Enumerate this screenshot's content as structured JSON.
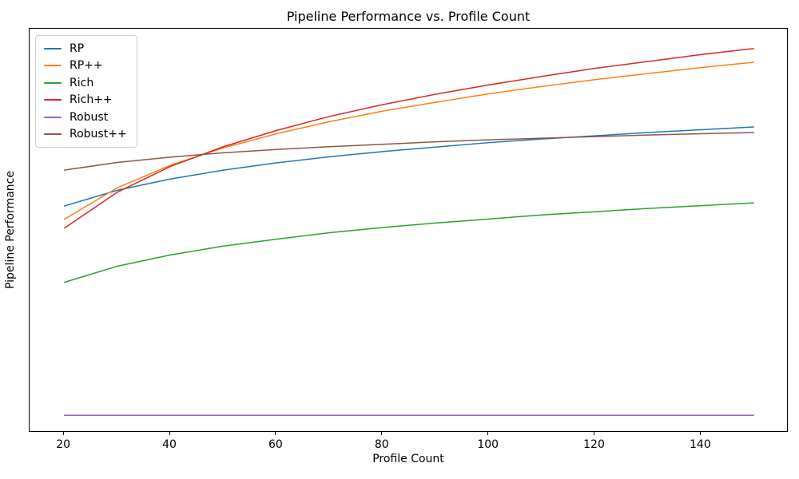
{
  "chart_data": {
    "type": "line",
    "title": "Pipeline Performance vs. Profile Count",
    "xlabel": "Profile Count",
    "ylabel": "Pipeline Performance",
    "grid": false,
    "legend_position": "upper left",
    "xlim": [
      13.5,
      156.5
    ],
    "ylim": [
      0,
      1
    ],
    "xticks": [
      20,
      40,
      60,
      80,
      100,
      120,
      140
    ],
    "yticks": [],
    "x": [
      20,
      30,
      40,
      50,
      60,
      70,
      80,
      90,
      100,
      110,
      120,
      130,
      140,
      150
    ],
    "series": [
      {
        "name": "RP",
        "color": "#1f77b4",
        "values": [
          0.561,
          0.6,
          0.628,
          0.65,
          0.668,
          0.683,
          0.696,
          0.707,
          0.718,
          0.727,
          0.735,
          0.743,
          0.75,
          0.757
        ]
      },
      {
        "name": "RP++",
        "color": "#ff7f0e",
        "values": [
          0.528,
          0.606,
          0.662,
          0.705,
          0.74,
          0.77,
          0.796,
          0.818,
          0.839,
          0.857,
          0.874,
          0.889,
          0.904,
          0.917
        ]
      },
      {
        "name": "Rich",
        "color": "#2ca02c",
        "values": [
          0.372,
          0.412,
          0.44,
          0.462,
          0.479,
          0.495,
          0.508,
          0.519,
          0.529,
          0.539,
          0.547,
          0.555,
          0.562,
          0.569
        ]
      },
      {
        "name": "Rich++",
        "color": "#d62728",
        "values": [
          0.506,
          0.595,
          0.659,
          0.708,
          0.748,
          0.783,
          0.812,
          0.838,
          0.861,
          0.882,
          0.902,
          0.919,
          0.936,
          0.951
        ]
      },
      {
        "name": "Robust",
        "color": "#9467bd",
        "values": [
          0.043,
          0.043,
          0.043,
          0.043,
          0.043,
          0.043,
          0.043,
          0.043,
          0.043,
          0.043,
          0.043,
          0.043,
          0.043,
          0.043
        ]
      },
      {
        "name": "Robust++",
        "color": "#8c564b",
        "values": [
          0.65,
          0.669,
          0.682,
          0.693,
          0.701,
          0.708,
          0.714,
          0.72,
          0.725,
          0.729,
          0.733,
          0.737,
          0.74,
          0.743
        ]
      }
    ]
  }
}
